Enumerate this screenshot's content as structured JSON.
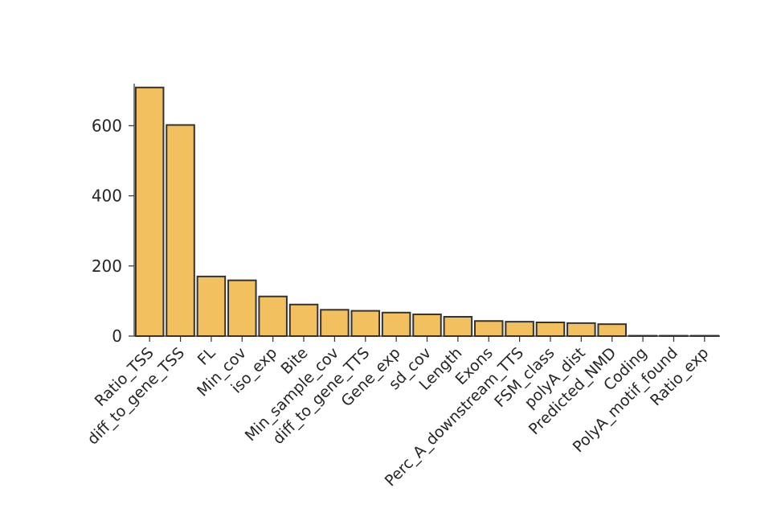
{
  "chart_data": {
    "type": "bar",
    "title": "",
    "xlabel": "",
    "ylabel": "",
    "categories": [
      "Ratio_TSS",
      "diff_to_gene_TSS",
      "FL",
      "Min_cov",
      "iso_exp",
      "Bite",
      "Min_sample_cov",
      "diff_to_gene_TTS",
      "Gene_exp",
      "sd_cov",
      "Length",
      "Exons",
      "Perc_A_downstream_TTS",
      "FSM_class",
      "polyA_dist",
      "Predicted_NMD",
      "Coding",
      "PolyA_motif_found",
      "Ratio_exp"
    ],
    "values": [
      709,
      602,
      170,
      159,
      113,
      90,
      75,
      72,
      67,
      62,
      55,
      43,
      41,
      39,
      37,
      34,
      1,
      1,
      1
    ],
    "ylim": [
      0,
      720
    ],
    "yticks": [
      0,
      200,
      400,
      600
    ],
    "grid": false,
    "legend": "none",
    "bar_color": "#f3c060",
    "edge_color": "#333333"
  }
}
